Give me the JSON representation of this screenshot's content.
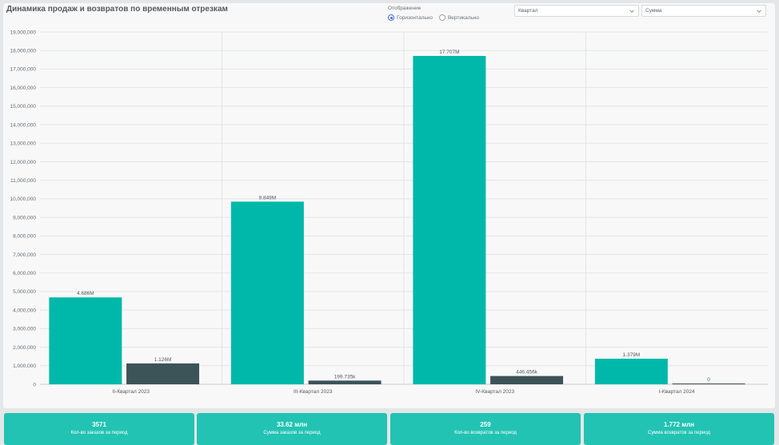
{
  "header": {
    "title": "Динамика продаж и возвратов по временным отрезкам",
    "orientation_label": "Отображение",
    "orientation_options": [
      {
        "label": "Горизонтально",
        "checked": true
      },
      {
        "label": "Вертикально",
        "checked": false
      }
    ],
    "period_select": {
      "value": "Квартал",
      "icon": "chevron-down-icon"
    },
    "metric_select": {
      "value": "Сумма",
      "icon": "chevron-down-icon"
    }
  },
  "chart_data": {
    "type": "bar",
    "title": "Динамика продаж и возвратов по временным отрезкам",
    "xlabel": "",
    "ylabel": "",
    "categories": [
      "II-Квартал 2023",
      "III-Квартал 2023",
      "IV-Квартал 2023",
      "I-Квартал 2024"
    ],
    "series": [
      {
        "color": "#00b8a9",
        "values": [
          4686000,
          9849000,
          17707000,
          1379000
        ],
        "labels": [
          "4.686M",
          "9.849M",
          "17.707M",
          "1.379M"
        ]
      },
      {
        "color": "#3c5358",
        "values": [
          1126000,
          199735,
          446456,
          0
        ],
        "labels": [
          "1.126M",
          "199.735k",
          "446.456k",
          "0"
        ]
      }
    ],
    "ylim": [
      0,
      19000000
    ],
    "yticks": [
      "0",
      "1,000,000",
      "2,000,000",
      "3,000,000",
      "4,000,000",
      "5,000,000",
      "6,000,000",
      "7,000,000",
      "8,000,000",
      "9,000,000",
      "10,000,000",
      "11,000,000",
      "12,000,000",
      "13,000,000",
      "14,000,000",
      "15,000,000",
      "16,000,000",
      "17,000,000",
      "18,000,000",
      "19,000,000"
    ],
    "grid": true,
    "legend": "none"
  },
  "kpis": [
    {
      "value": "3571",
      "label": "Кол-во заказов за период"
    },
    {
      "value": "33.62 млн",
      "label": "Сумма заказов за период"
    },
    {
      "value": "259",
      "label": "Кол-во возвратов за период"
    },
    {
      "value": "1.772 млн",
      "label": "Сумма возвратов за период"
    }
  ],
  "colors": {
    "accent_teal": "#00b8a9",
    "dark_slate": "#3c5358",
    "kpi_background": "#22c3b2"
  }
}
